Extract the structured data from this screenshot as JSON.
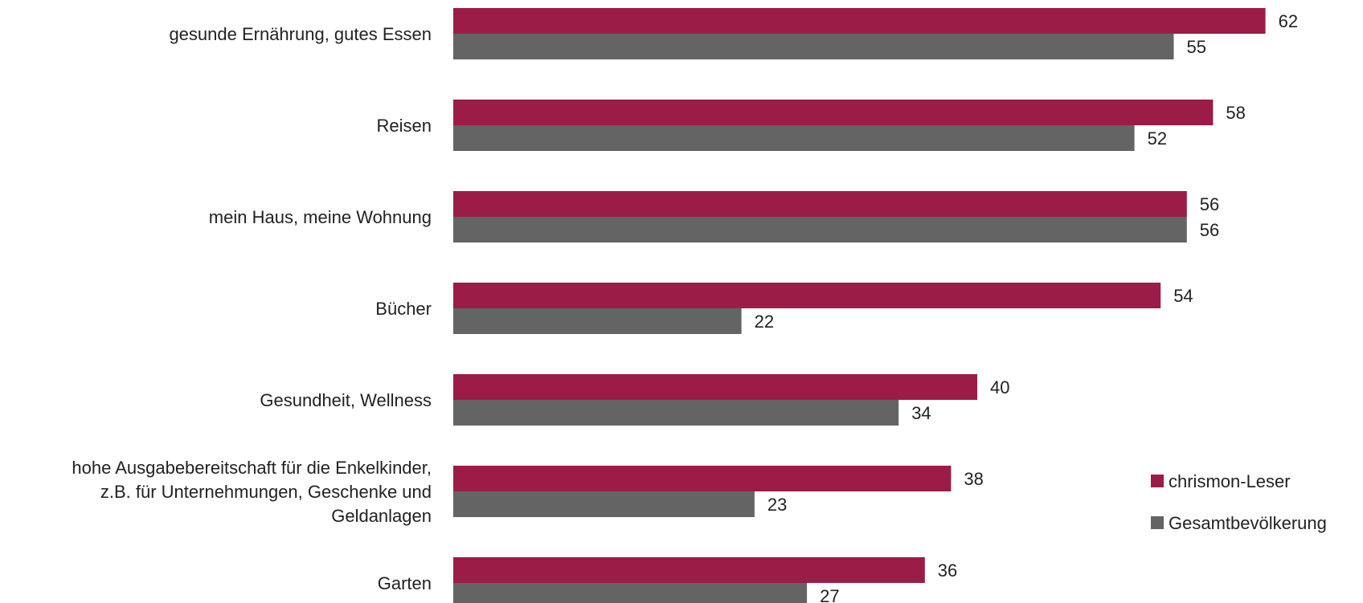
{
  "chart_data": {
    "type": "bar",
    "orientation": "horizontal",
    "categories": [
      [
        "gesunde Ernährung, gutes Essen"
      ],
      [
        "Reisen"
      ],
      [
        "mein Haus, meine Wohnung"
      ],
      [
        "Bücher"
      ],
      [
        "Gesundheit, Wellness"
      ],
      [
        "hohe Ausgabebereitschaft für die Enkelkinder,",
        "z.B. für Unternehmungen, Geschenke und",
        "Geldanlagen"
      ],
      [
        "Garten"
      ]
    ],
    "series": [
      {
        "name": "chrismon-Leser",
        "color": "#9B1C47",
        "values": [
          62,
          58,
          56,
          54,
          40,
          38,
          36
        ]
      },
      {
        "name": "Gesamtbevölkerung",
        "color": "#646464",
        "values": [
          55,
          52,
          56,
          22,
          34,
          23,
          27
        ]
      }
    ],
    "xlim": [
      0,
      70
    ],
    "grid": false,
    "legend_position": "right"
  }
}
